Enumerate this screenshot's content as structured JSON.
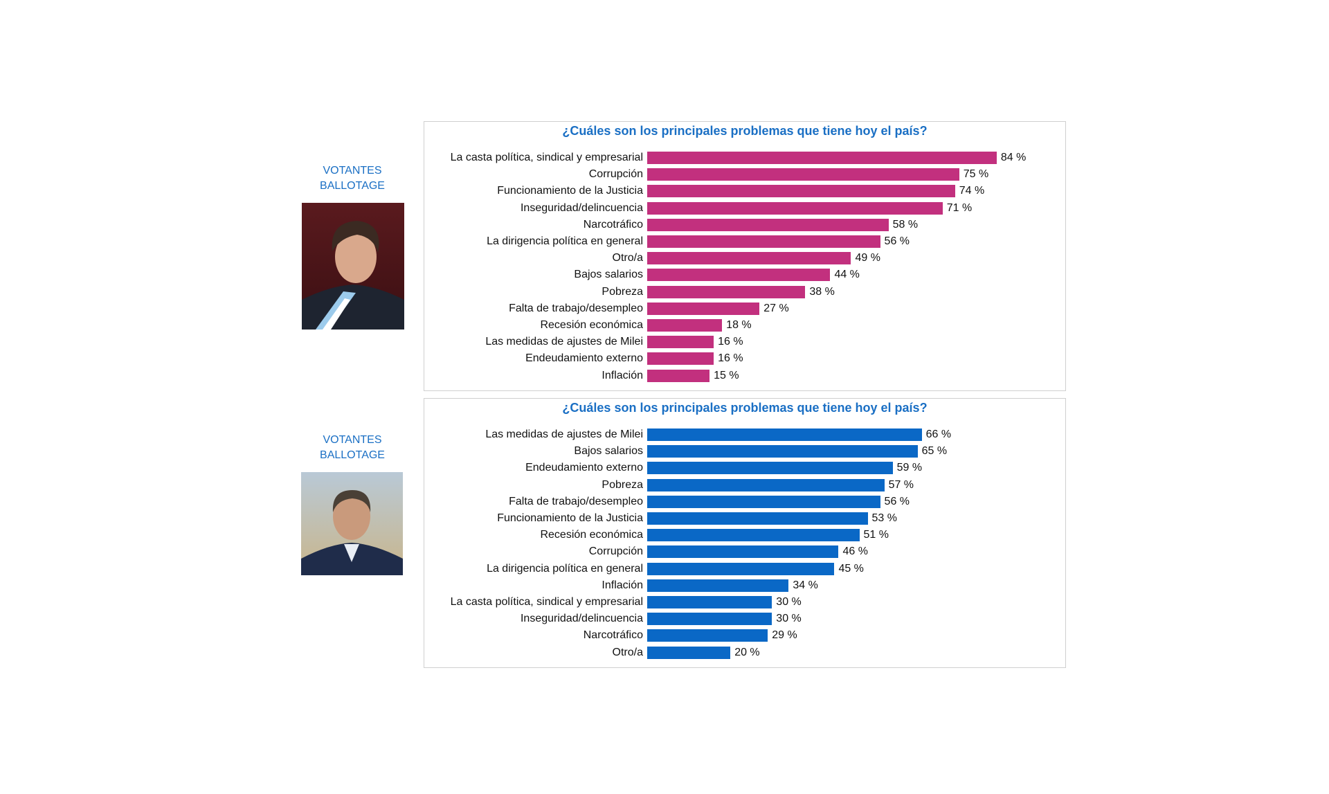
{
  "side_labels": [
    {
      "line1": "VOTANTES",
      "line2": "BALLOTAGE"
    },
    {
      "line1": "VOTANTES",
      "line2": "BALLOTAGE"
    }
  ],
  "chart_data": [
    {
      "type": "bar",
      "orientation": "horizontal",
      "title": "¿Cuáles son los principales problemas que tiene hoy el país?",
      "color": "#c2307e",
      "unit": "%",
      "categories": [
        "La casta política, sindical y empresarial",
        "Corrupción",
        "Funcionamiento de la Justicia",
        "Inseguridad/delincuencia",
        "Narcotráfico",
        "La dirigencia política en general",
        "Otro/a",
        "Bajos salarios",
        "Pobreza",
        "Falta de trabajo/desempleo",
        "Recesión económica",
        "Las medidas de ajustes de Milei",
        "Endeudamiento externo",
        "Inflación"
      ],
      "values": [
        84,
        75,
        74,
        71,
        58,
        56,
        49,
        44,
        38,
        27,
        18,
        16,
        16,
        15
      ]
    },
    {
      "type": "bar",
      "orientation": "horizontal",
      "title": "¿Cuáles son los principales problemas que tiene hoy el país?",
      "color": "#0a68c6",
      "unit": "%",
      "categories": [
        "Las medidas de ajustes de Milei",
        "Bajos salarios",
        "Endeudamiento externo",
        "Pobreza",
        "Falta de trabajo/desempleo",
        "Funcionamiento de la Justicia",
        "Recesión económica",
        "Corrupción",
        "La dirigencia política en general",
        "Inflación",
        "La casta política, sindical y empresarial",
        "Inseguridad/delincuencia",
        "Narcotráfico",
        "Otro/a"
      ],
      "values": [
        66,
        65,
        59,
        57,
        56,
        53,
        51,
        46,
        45,
        34,
        30,
        30,
        29,
        20
      ]
    }
  ]
}
